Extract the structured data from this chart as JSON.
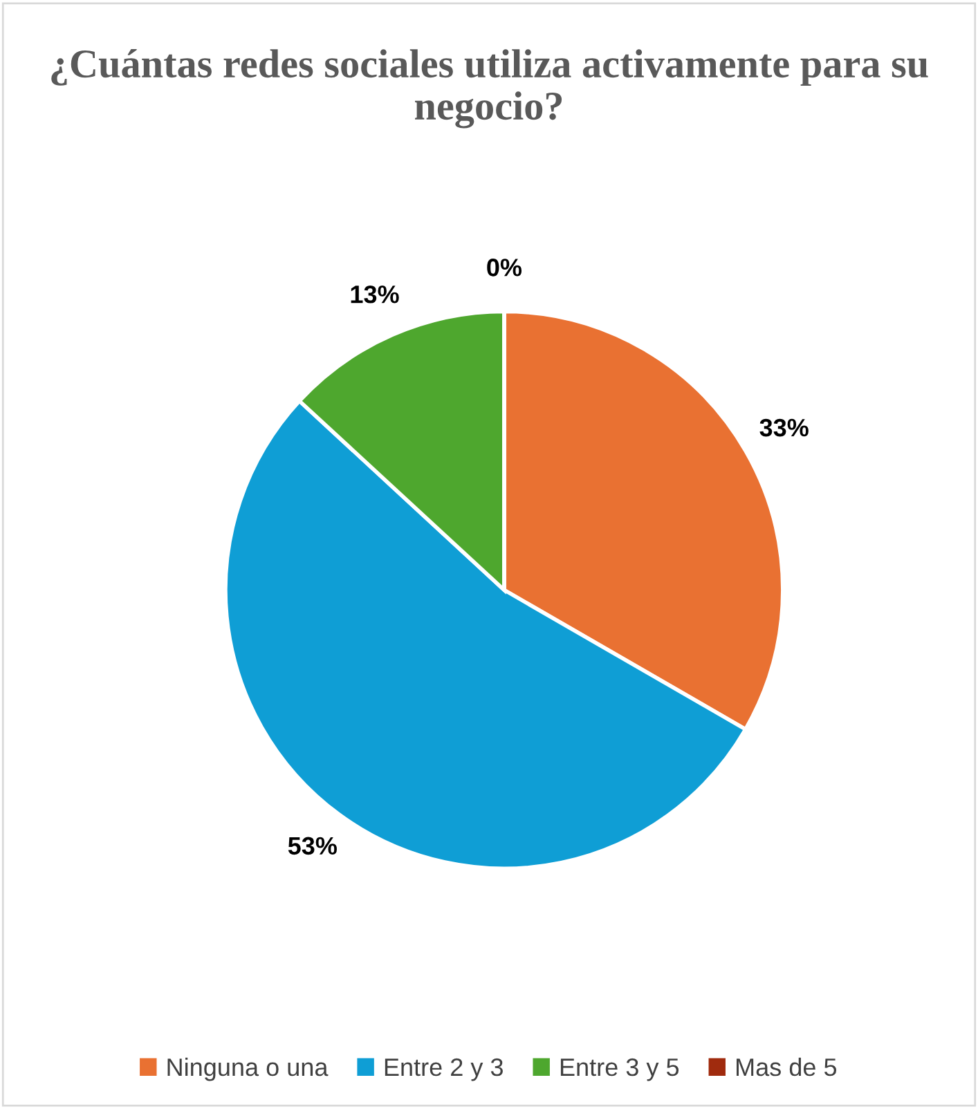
{
  "chart_data": {
    "type": "pie",
    "title": "¿Cuántas redes sociales utiliza activamente para su negocio?",
    "categories": [
      "Ninguna o una",
      "Entre 2 y 3",
      "Entre 3 y 5",
      "Mas de 5"
    ],
    "values": [
      33,
      53,
      13,
      0
    ],
    "colors": [
      "#e97132",
      "#0f9ed5",
      "#4ea72e",
      "#a02b0e"
    ],
    "value_labels": [
      "33%",
      "53%",
      "13%",
      "0%"
    ],
    "legend": "bottom"
  }
}
